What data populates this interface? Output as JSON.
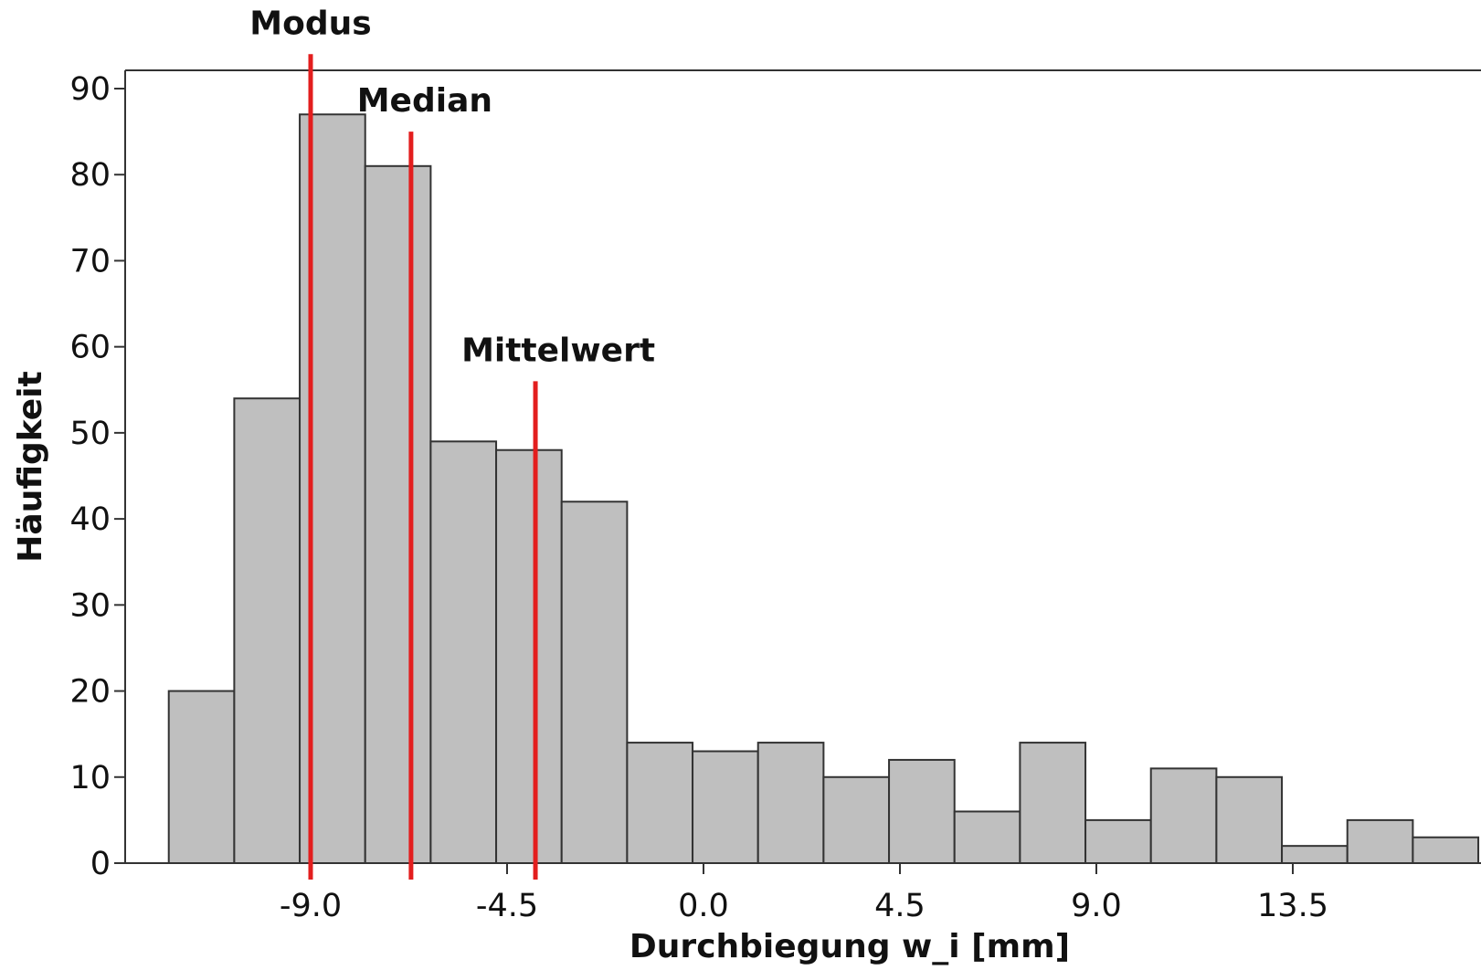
{
  "chart_data": {
    "type": "bar",
    "title": "",
    "xlabel": "Durchbiegung w_i [mm]",
    "ylabel": "Häufigkeit",
    "x_tick_values": [
      -9.0,
      -4.5,
      0.0,
      4.5,
      9.0,
      13.5
    ],
    "x_tick_labels": [
      "-9.0",
      "-4.5",
      "0.0",
      "4.5",
      "9.0",
      "13.5"
    ],
    "y_ticks": [
      0,
      10,
      20,
      30,
      40,
      50,
      60,
      70,
      80,
      90
    ],
    "xlim": [
      -12.8,
      17.7
    ],
    "ylim": [
      0,
      92
    ],
    "grid": false,
    "bin_width": 1.5,
    "bins": [
      {
        "x_start": -12.25,
        "x_end": -10.75,
        "count": 20
      },
      {
        "x_start": -10.75,
        "x_end": -9.25,
        "count": 54
      },
      {
        "x_start": -9.25,
        "x_end": -7.75,
        "count": 87
      },
      {
        "x_start": -7.75,
        "x_end": -6.25,
        "count": 81
      },
      {
        "x_start": -6.25,
        "x_end": -4.75,
        "count": 49
      },
      {
        "x_start": -4.75,
        "x_end": -3.25,
        "count": 48
      },
      {
        "x_start": -3.25,
        "x_end": -1.75,
        "count": 42
      },
      {
        "x_start": -1.75,
        "x_end": -0.25,
        "count": 14
      },
      {
        "x_start": -0.25,
        "x_end": 1.25,
        "count": 13
      },
      {
        "x_start": 1.25,
        "x_end": 2.75,
        "count": 14
      },
      {
        "x_start": 2.75,
        "x_end": 4.25,
        "count": 10
      },
      {
        "x_start": 4.25,
        "x_end": 5.75,
        "count": 12
      },
      {
        "x_start": 5.75,
        "x_end": 7.25,
        "count": 6
      },
      {
        "x_start": 7.25,
        "x_end": 8.75,
        "count": 14
      },
      {
        "x_start": 8.75,
        "x_end": 10.25,
        "count": 5
      },
      {
        "x_start": 10.25,
        "x_end": 11.75,
        "count": 11
      },
      {
        "x_start": 11.75,
        "x_end": 13.25,
        "count": 10
      },
      {
        "x_start": 13.25,
        "x_end": 14.75,
        "count": 2
      },
      {
        "x_start": 14.75,
        "x_end": 16.25,
        "count": 5
      },
      {
        "x_start": 16.25,
        "x_end": 17.75,
        "count": 3
      }
    ],
    "markers": [
      {
        "label": "Modus",
        "x": -9.0,
        "top": 94
      },
      {
        "label": "Median",
        "x": -6.7,
        "top": 85
      },
      {
        "label": "Mittelwert",
        "x": -3.85,
        "top": 56
      }
    ],
    "colors": {
      "bar_fill": "#bfbfbf",
      "bar_stroke": "#333333",
      "marker_line": "#e31e1e",
      "axis": "#333333"
    }
  }
}
